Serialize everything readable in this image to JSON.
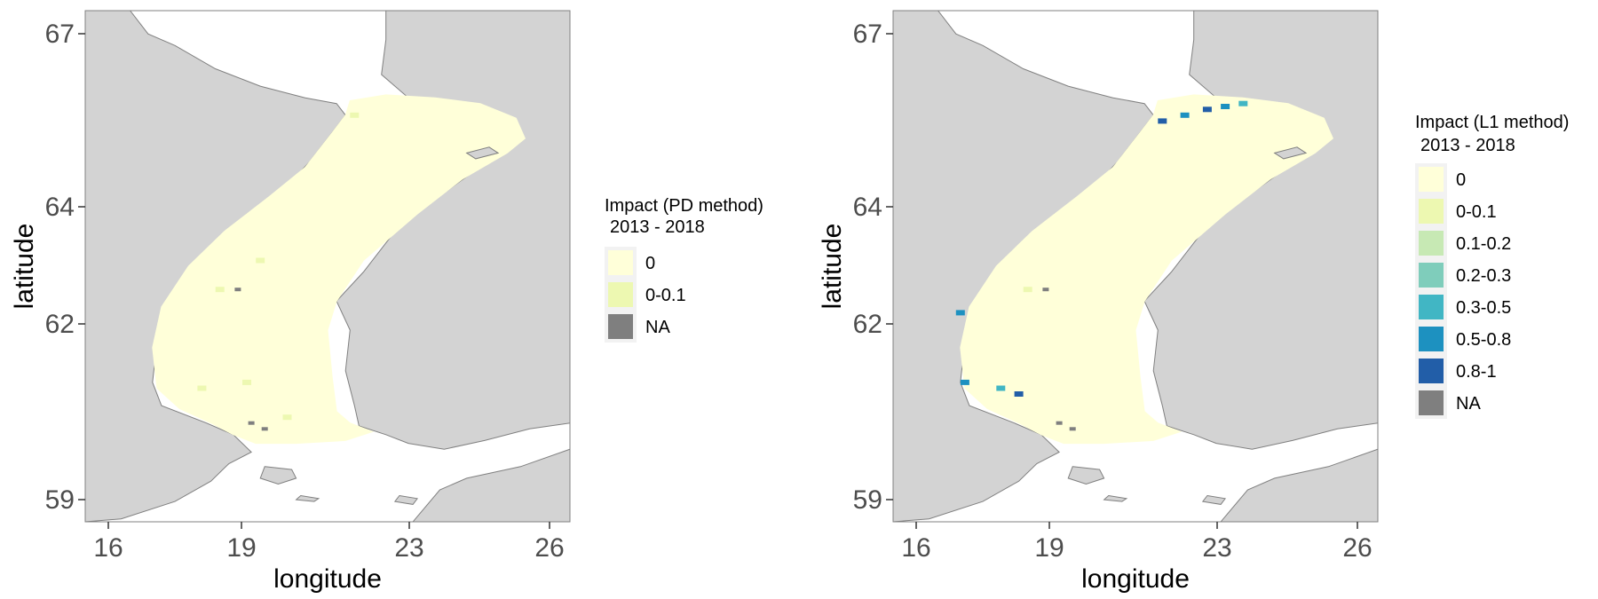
{
  "colors": {
    "land": "#d3d3d3",
    "land_border": "#808080",
    "water": "#ffffff",
    "legend_bg": "#f2f2f2",
    "na": "#7f7f7f",
    "impact_0": "#ffffd9",
    "impact_0_01": "#edf8b1",
    "impact_01_02": "#c7e9b4",
    "impact_02_03": "#7fcdbb",
    "impact_03_05": "#41b6c4",
    "impact_05_08": "#1d91c0",
    "impact_08_1": "#225ea8"
  },
  "chart_data": [
    {
      "type": "heatmap",
      "xlabel": "longitude",
      "ylabel": "latitude",
      "xlim": [
        15.6,
        26.4
      ],
      "ylim": [
        58.6,
        67.4
      ],
      "x_ticks": [
        "16",
        "19",
        "23",
        "26"
      ],
      "y_ticks": [
        "59",
        "62",
        "64",
        "67"
      ],
      "legend": {
        "title_line1": "Impact (PD method)",
        "title_line2": "2013 - 2018",
        "entries": [
          {
            "label": "0",
            "color": "#ffffd9"
          },
          {
            "label": "0-0.1",
            "color": "#edf8b1"
          },
          {
            "label": "NA",
            "color": "#7f7f7f"
          }
        ]
      },
      "highlights": [
        {
          "lon": 21.6,
          "lat": 65.6,
          "category": "0-0.1"
        },
        {
          "lon": 18.2,
          "lat": 60.9,
          "category": "0-0.1"
        },
        {
          "lon": 19.2,
          "lat": 61.0,
          "category": "0-0.1"
        },
        {
          "lon": 18.6,
          "lat": 62.6,
          "category": "0-0.1"
        },
        {
          "lon": 19.5,
          "lat": 63.1,
          "category": "0-0.1"
        },
        {
          "lon": 20.1,
          "lat": 60.4,
          "category": "0-0.1"
        },
        {
          "lon": 19.0,
          "lat": 62.6,
          "category": "NA"
        },
        {
          "lon": 19.3,
          "lat": 60.3,
          "category": "NA"
        },
        {
          "lon": 19.6,
          "lat": 60.2,
          "category": "NA"
        }
      ]
    },
    {
      "type": "heatmap",
      "xlabel": "longitude",
      "ylabel": "latitude",
      "xlim": [
        15.6,
        26.4
      ],
      "ylim": [
        58.6,
        67.4
      ],
      "x_ticks": [
        "16",
        "19",
        "23",
        "26"
      ],
      "y_ticks": [
        "59",
        "62",
        "64",
        "67"
      ],
      "legend": {
        "title_line1": "Impact (L1 method)",
        "title_line2": "2013 - 2018",
        "entries": [
          {
            "label": "0",
            "color": "#ffffd9"
          },
          {
            "label": "0-0.1",
            "color": "#edf8b1"
          },
          {
            "label": "0.1-0.2",
            "color": "#c7e9b4"
          },
          {
            "label": "0.2-0.3",
            "color": "#7fcdbb"
          },
          {
            "label": "0.3-0.5",
            "color": "#41b6c4"
          },
          {
            "label": "0.5-0.8",
            "color": "#1d91c0"
          },
          {
            "label": "0.8-1",
            "color": "#225ea8"
          },
          {
            "label": "NA",
            "color": "#7f7f7f"
          }
        ]
      },
      "highlights": [
        {
          "lon": 21.6,
          "lat": 65.5,
          "category": "0.8-1"
        },
        {
          "lon": 22.1,
          "lat": 65.6,
          "category": "0.5-0.8"
        },
        {
          "lon": 22.6,
          "lat": 65.7,
          "category": "0.8-1"
        },
        {
          "lon": 23.0,
          "lat": 65.75,
          "category": "0.5-0.8"
        },
        {
          "lon": 23.4,
          "lat": 65.8,
          "category": "0.3-0.5"
        },
        {
          "lon": 17.1,
          "lat": 62.2,
          "category": "0.5-0.8"
        },
        {
          "lon": 17.2,
          "lat": 61.0,
          "category": "0.5-0.8"
        },
        {
          "lon": 18.4,
          "lat": 60.8,
          "category": "0.8-1"
        },
        {
          "lon": 18.0,
          "lat": 60.9,
          "category": "0.3-0.5"
        },
        {
          "lon": 18.6,
          "lat": 62.6,
          "category": "0-0.1"
        },
        {
          "lon": 19.0,
          "lat": 62.6,
          "category": "NA"
        },
        {
          "lon": 19.3,
          "lat": 60.3,
          "category": "NA"
        },
        {
          "lon": 19.6,
          "lat": 60.2,
          "category": "NA"
        }
      ]
    }
  ]
}
